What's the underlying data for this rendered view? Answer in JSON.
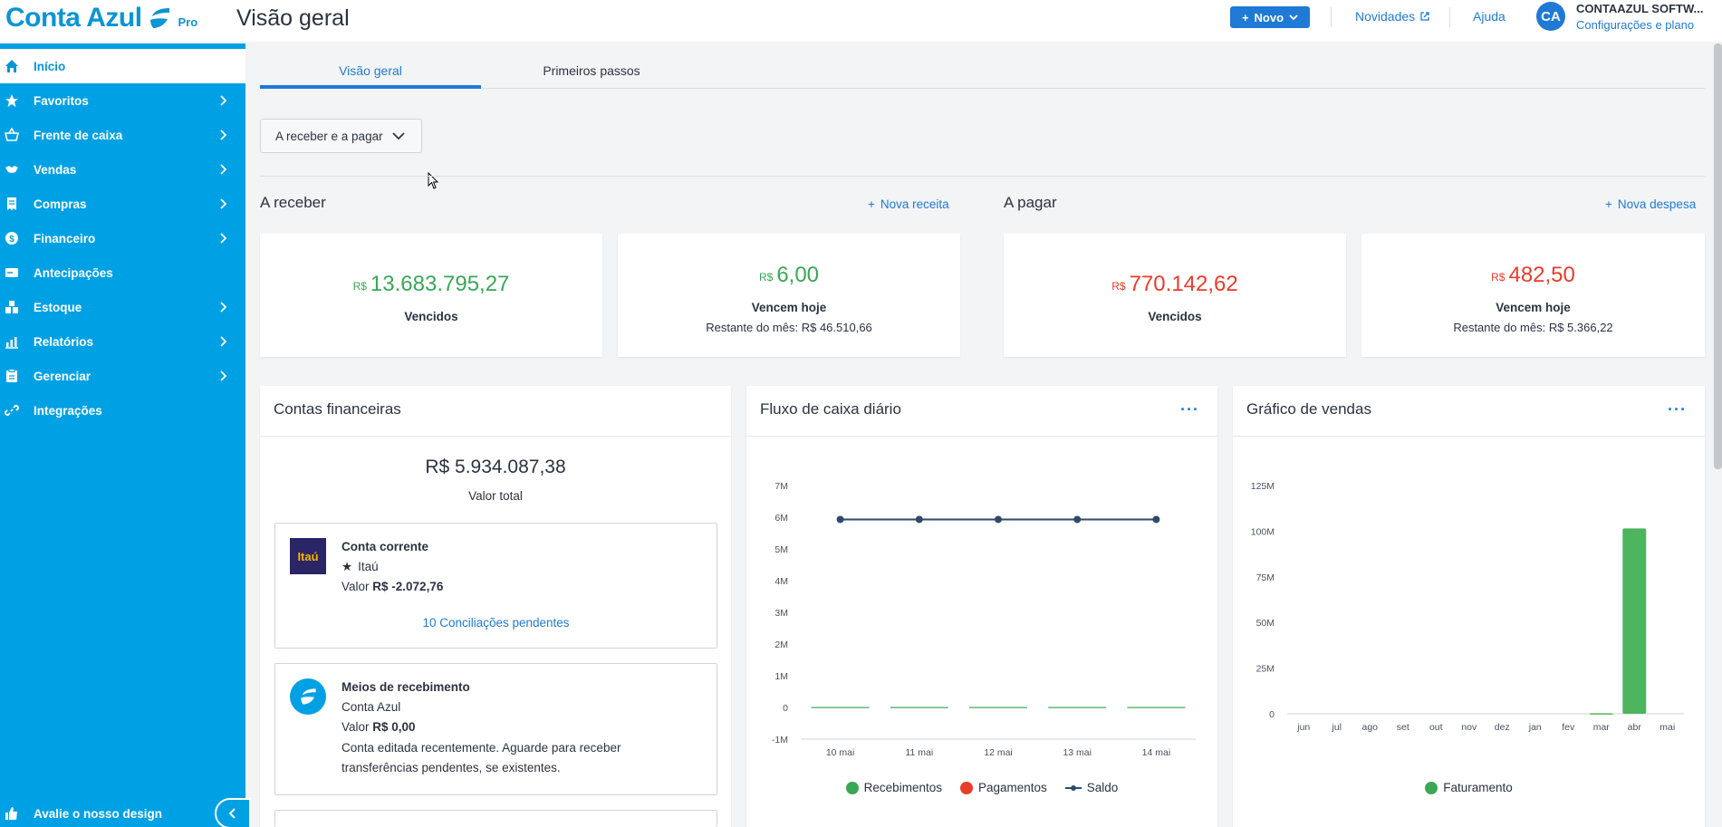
{
  "header": {
    "logo_text": "Conta Azul",
    "logo_badge": "Pro",
    "page_title": "Visão geral",
    "new_button": "Novo",
    "news_link": "Novidades",
    "help_link": "Ajuda",
    "avatar_initials": "CA",
    "company_name": "CONTAAZUL SOFTW...",
    "config_link": "Configurações e plano"
  },
  "sidebar": {
    "items": [
      {
        "label": "Início",
        "icon": "home-icon"
      },
      {
        "label": "Favoritos",
        "icon": "star-icon"
      },
      {
        "label": "Frente de caixa",
        "icon": "basket-icon"
      },
      {
        "label": "Vendas",
        "icon": "handshake-icon"
      },
      {
        "label": "Compras",
        "icon": "receipt-icon"
      },
      {
        "label": "Financeiro",
        "icon": "dollar-icon"
      },
      {
        "label": "Antecipações",
        "icon": "card-icon"
      },
      {
        "label": "Estoque",
        "icon": "boxes-icon"
      },
      {
        "label": "Relatórios",
        "icon": "report-icon"
      },
      {
        "label": "Gerenciar",
        "icon": "clipboard-icon"
      },
      {
        "label": "Integrações",
        "icon": "link-icon"
      }
    ],
    "footer_label": "Avalie o nosso design"
  },
  "tabs": [
    {
      "label": "Visão geral"
    },
    {
      "label": "Primeiros passos"
    }
  ],
  "filter": {
    "selected": "A receber e a pagar"
  },
  "receivable": {
    "title": "A receber",
    "action": "Nova receita",
    "overdue": {
      "currency": "R$",
      "value": "13.683.795,27",
      "label": "Vencidos"
    },
    "today": {
      "currency": "R$",
      "value": "6,00",
      "label": "Vencem hoje",
      "rest": "Restante do mês: R$ 46.510,66"
    }
  },
  "payable": {
    "title": "A pagar",
    "action": "Nova despesa",
    "overdue": {
      "currency": "R$",
      "value": "770.142,62",
      "label": "Vencidos"
    },
    "today": {
      "currency": "R$",
      "value": "482,50",
      "label": "Vencem hoje",
      "rest": "Restante do mês: R$ 5.366,22"
    }
  },
  "accounts": {
    "title": "Contas financeiras",
    "total": "R$ 5.934.087,38",
    "total_label": "Valor total",
    "items": [
      {
        "name": "Conta corrente",
        "bank": "Itaú",
        "logo_text": "Itaú",
        "value_label": "Valor",
        "value": "R$ -2.072,76",
        "link": "10 Conciliações pendentes"
      },
      {
        "name": "Meios de recebimento",
        "bank": "Conta Azul",
        "value_label": "Valor",
        "value": "R$ 0,00",
        "note_1": "Conta editada recentemente. Aguarde para receber",
        "note_2": "transferências pendentes, se existentes."
      }
    ]
  },
  "cashflow": {
    "title": "Fluxo de caixa diário",
    "more": "···",
    "legend": [
      "Recebimentos",
      "Pagamentos",
      "Saldo"
    ]
  },
  "sales": {
    "title": "Gráfico de vendas",
    "more": "···",
    "legend": [
      "Faturamento"
    ]
  },
  "colors": {
    "accent": "#00a1e4",
    "link": "#1f7ad6",
    "green": "#3aa757",
    "red": "#ea3c2b",
    "navy": "#2e4a6b"
  },
  "chart_data": [
    {
      "type": "line",
      "title": "Fluxo de caixa diário",
      "categories": [
        "10 mai",
        "11 mai",
        "12 mai",
        "13 mai",
        "14 mai"
      ],
      "y_ticks": [
        "7M",
        "6M",
        "5M",
        "4M",
        "3M",
        "2M",
        "1M",
        "0",
        "-1M"
      ],
      "ylim": [
        -1000000,
        7000000
      ],
      "series": [
        {
          "name": "Recebimentos",
          "kind": "bar",
          "values": [
            0,
            0,
            0,
            0,
            0
          ]
        },
        {
          "name": "Pagamentos",
          "kind": "bar",
          "values": [
            0,
            0,
            0,
            0,
            0
          ]
        },
        {
          "name": "Saldo",
          "kind": "line",
          "values": [
            5930000,
            5930000,
            5930000,
            5930000,
            5930000
          ]
        }
      ],
      "legend": "bottom"
    },
    {
      "type": "bar",
      "title": "Gráfico de vendas",
      "categories": [
        "jun",
        "jul",
        "ago",
        "set",
        "out",
        "nov",
        "dez",
        "jan",
        "fev",
        "mar",
        "abr",
        "mai"
      ],
      "y_ticks": [
        "125M",
        "100M",
        "75M",
        "50M",
        "25M",
        "0"
      ],
      "ylim": [
        0,
        125000000
      ],
      "series": [
        {
          "name": "Faturamento",
          "values": [
            0,
            0,
            0,
            0,
            0,
            0,
            0,
            0,
            0,
            300000,
            101500000,
            0
          ]
        }
      ],
      "legend": "bottom"
    }
  ]
}
